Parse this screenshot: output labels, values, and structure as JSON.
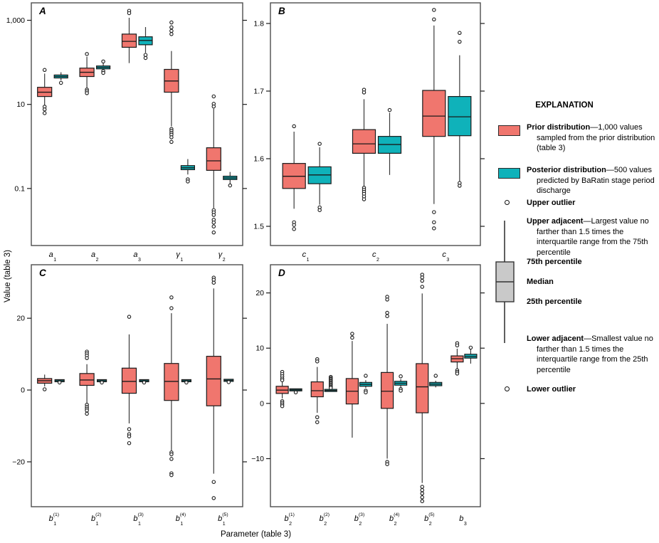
{
  "figure": {
    "y_axis_title": "Value (table 3)",
    "x_axis_title": "Parameter (table 3)"
  },
  "colors": {
    "prior": "#f0766e",
    "posterior": "#0fb2ba",
    "box_stroke": "#1a1a1a",
    "whisker": "#3a3a3a",
    "panel_border": "#4d4d4d",
    "legend_box_fill": "#c9c9c9"
  },
  "legend": {
    "title": "EXPLANATION",
    "prior": {
      "term": "Prior distribution",
      "desc": "—1,000 values sampled from the prior distribution (table 3)"
    },
    "posterior": {
      "term": "Posterior distribution",
      "desc": "—500 values predicted by BaRatin stage period discharge"
    },
    "upper_outlier": "Upper outlier",
    "upper_adjacent": {
      "term": "Upper adjacent",
      "desc": "—Largest value no farther than 1.5 times the interquartile range from the 75th percentile"
    },
    "p75": "75th percentile",
    "median": "Median",
    "p25": "25th percentile",
    "lower_adjacent": {
      "term": "Lower adjacent",
      "desc": "—Smallest value no farther than 1.5 times the interquartile range from the 25th percentile"
    },
    "lower_outlier": "Lower outlier"
  },
  "chart_data": [
    {
      "panel": "A",
      "type": "boxplot",
      "yscale": "log",
      "y_range": [
        0.0044,
        2600
      ],
      "yticks": [
        {
          "label": "1,000",
          "value": 1000
        },
        {
          "label": "10",
          "value": 10
        },
        {
          "label": "0.1",
          "value": 0.1
        }
      ],
      "categories": [
        {
          "main": "a",
          "sup": "",
          "sub": "1"
        },
        {
          "main": "a",
          "sup": "",
          "sub": "2"
        },
        {
          "main": "a",
          "sup": "",
          "sub": "3"
        },
        {
          "main": "γ",
          "sup": "",
          "sub": "1"
        },
        {
          "main": "γ",
          "sup": "",
          "sub": "2"
        }
      ],
      "groups": [
        {
          "prior": {
            "lo": 9.6,
            "q1": 15.4,
            "med": 19.5,
            "q3": 25.5,
            "hi": 54,
            "out_hi": [
              66
            ],
            "out_lo": [
              8.8,
              7.6,
              6.2
            ]
          },
          "posterior": {
            "lo": 37,
            "q1": 42.5,
            "med": 46,
            "q3": 50,
            "hi": 58,
            "out_hi": [],
            "out_lo": [
              32.5
            ]
          }
        },
        {
          "prior": {
            "lo": 24.5,
            "q1": 46,
            "med": 58,
            "q3": 73,
            "hi": 136,
            "out_hi": [
              158
            ],
            "out_lo": [
              22.5,
              20.5,
              18.5
            ]
          },
          "posterior": {
            "lo": 65,
            "q1": 70,
            "med": 76,
            "q3": 82,
            "hi": 100,
            "out_hi": [
              105
            ],
            "out_lo": [
              62,
              56
            ]
          }
        },
        {
          "prior": {
            "lo": 96,
            "q1": 228,
            "med": 315,
            "q3": 470,
            "hi": 1150,
            "out_hi": [
              1680,
              1480
            ],
            "out_lo": []
          },
          "posterior": {
            "lo": 168,
            "q1": 262,
            "med": 332,
            "q3": 405,
            "hi": 690,
            "out_hi": [],
            "out_lo": [
              150,
              127
            ]
          }
        },
        {
          "prior": {
            "lo": 3.0,
            "q1": 19.5,
            "med": 36,
            "q3": 68,
            "hi": 186,
            "out_hi": [
              890,
              680,
              560,
              470
            ],
            "out_lo": [
              2.6,
              2.35,
              2.1,
              1.9,
              1.65,
              1.28
            ]
          },
          "posterior": {
            "lo": 0.215,
            "q1": 0.28,
            "med": 0.31,
            "q3": 0.35,
            "hi": 0.5,
            "out_hi": [],
            "out_lo": [
              0.165,
              0.147
            ]
          }
        },
        {
          "prior": {
            "lo": 0.034,
            "q1": 0.27,
            "med": 0.455,
            "q3": 0.93,
            "hi": 7.9,
            "out_hi": [
              15.5,
              10.3,
              8.9
            ],
            "out_lo": [
              0.0305,
              0.027,
              0.0235,
              0.018,
              0.0155,
              0.0125,
              0.009
            ]
          },
          "posterior": {
            "lo": 0.126,
            "q1": 0.163,
            "med": 0.178,
            "q3": 0.196,
            "hi": 0.247,
            "out_hi": [],
            "out_lo": [
              0.118
            ]
          }
        }
      ]
    },
    {
      "panel": "B",
      "type": "boxplot",
      "yscale": "linear",
      "y_range": [
        1.4716,
        1.8305
      ],
      "yticks": [
        {
          "label": "1.8",
          "value": 1.8
        },
        {
          "label": "1.7",
          "value": 1.7
        },
        {
          "label": "1.6",
          "value": 1.6
        },
        {
          "label": "1.5",
          "value": 1.5
        }
      ],
      "categories": [
        {
          "main": "c",
          "sup": "",
          "sub": "1"
        },
        {
          "main": "c",
          "sup": "",
          "sub": "2"
        },
        {
          "main": "c",
          "sup": "",
          "sub": "3"
        }
      ],
      "groups": [
        {
          "prior": {
            "lo": 1.526,
            "q1": 1.556,
            "med": 1.574,
            "q3": 1.593,
            "hi": 1.64,
            "out_hi": [
              1.648
            ],
            "out_lo": [
              1.506,
              1.502,
              1.496
            ]
          },
          "posterior": {
            "lo": 1.532,
            "q1": 1.563,
            "med": 1.576,
            "q3": 1.588,
            "hi": 1.617,
            "out_hi": [
              1.622
            ],
            "out_lo": [
              1.528,
              1.524
            ]
          }
        },
        {
          "prior": {
            "lo": 1.558,
            "q1": 1.608,
            "med": 1.622,
            "q3": 1.643,
            "hi": 1.688,
            "out_hi": [
              1.702,
              1.698
            ],
            "out_lo": [
              1.557,
              1.554,
              1.551,
              1.548,
              1.544,
              1.54
            ]
          },
          "posterior": {
            "lo": 1.576,
            "q1": 1.608,
            "med": 1.621,
            "q3": 1.633,
            "hi": 1.668,
            "out_hi": [
              1.672
            ],
            "out_lo": []
          }
        },
        {
          "prior": {
            "lo": 1.533,
            "q1": 1.633,
            "med": 1.663,
            "q3": 1.701,
            "hi": 1.797,
            "out_hi": [
              1.82,
              1.806
            ],
            "out_lo": [
              1.521,
              1.506,
              1.497
            ]
          },
          "posterior": {
            "lo": 1.566,
            "q1": 1.634,
            "med": 1.662,
            "q3": 1.692,
            "hi": 1.753,
            "out_hi": [
              1.786,
              1.773
            ],
            "out_lo": [
              1.564,
              1.56
            ]
          }
        }
      ]
    },
    {
      "panel": "C",
      "type": "boxplot",
      "yscale": "linear",
      "y_range": [
        -32.5,
        34.9
      ],
      "yticks": [
        {
          "label": "20",
          "value": 20
        },
        {
          "label": "0",
          "value": 0
        },
        {
          "label": "−20",
          "value": -20
        }
      ],
      "categories": [
        {
          "main": "b",
          "sup": "(1)",
          "sub": "1"
        },
        {
          "main": "b",
          "sup": "(2)",
          "sub": "1"
        },
        {
          "main": "b",
          "sup": "(3)",
          "sub": "1"
        },
        {
          "main": "b",
          "sup": "(4)",
          "sub": "1"
        },
        {
          "main": "b",
          "sup": "(5)",
          "sub": "1"
        }
      ],
      "groups": [
        {
          "prior": {
            "lo": 1.0,
            "q1": 1.9,
            "med": 2.6,
            "q3": 3.2,
            "hi": 4.3,
            "out_hi": [],
            "out_lo": [
              0.2
            ]
          },
          "posterior": {
            "lo": 2.45,
            "q1": 2.45,
            "med": 2.6,
            "q3": 2.75,
            "hi": 2.75,
            "out_hi": [],
            "out_lo": [
              2.1
            ]
          }
        },
        {
          "prior": {
            "lo": -3.7,
            "q1": 1.3,
            "med": 2.8,
            "q3": 4.6,
            "hi": 7.2,
            "out_hi": [
              10.7,
              10.2,
              9.6,
              8.9
            ],
            "out_lo": [
              -4.1,
              -4.7,
              -5.2,
              -5.7,
              -6.6
            ]
          },
          "posterior": {
            "lo": 2.4,
            "q1": 2.4,
            "med": 2.6,
            "q3": 2.8,
            "hi": 2.8,
            "out_hi": [],
            "out_lo": [
              2.1
            ]
          }
        },
        {
          "prior": {
            "lo": -9.3,
            "q1": -0.9,
            "med": 2.4,
            "q3": 6.1,
            "hi": 15.5,
            "out_hi": [
              20.4
            ],
            "out_lo": [
              -10.9,
              -12.3,
              -12.9,
              -14.8
            ]
          },
          "posterior": {
            "lo": 2.45,
            "q1": 2.45,
            "med": 2.6,
            "q3": 2.75,
            "hi": 2.75,
            "out_hi": [],
            "out_lo": [
              2.1
            ]
          }
        },
        {
          "prior": {
            "lo": -16.9,
            "q1": -2.9,
            "med": 2.4,
            "q3": 7.4,
            "hi": 21.4,
            "out_hi": [
              25.8,
              22.8
            ],
            "out_lo": [
              -17.4,
              -17.9,
              -19.2,
              -23.2,
              -23.7
            ]
          },
          "posterior": {
            "lo": 2.45,
            "q1": 2.45,
            "med": 2.6,
            "q3": 2.75,
            "hi": 2.75,
            "out_hi": [],
            "out_lo": [
              2.1
            ]
          }
        },
        {
          "prior": {
            "lo": -23.3,
            "q1": -4.4,
            "med": 3.1,
            "q3": 9.4,
            "hi": 28.3,
            "out_hi": [
              31.3,
              30.7,
              29.9
            ],
            "out_lo": [
              -25.6,
              -30.1
            ]
          },
          "posterior": {
            "lo": 2.55,
            "q1": 2.55,
            "med": 2.7,
            "q3": 2.85,
            "hi": 2.85,
            "out_hi": [],
            "out_lo": [
              2.2
            ]
          }
        }
      ]
    },
    {
      "panel": "D",
      "type": "boxplot",
      "yscale": "linear",
      "y_range": [
        -18.7,
        25.1
      ],
      "yticks": [
        {
          "label": "20",
          "value": 20
        },
        {
          "label": "10",
          "value": 10
        },
        {
          "label": "0",
          "value": 0
        },
        {
          "label": "−10",
          "value": -10
        }
      ],
      "categories": [
        {
          "main": "b",
          "sup": "(1)",
          "sub": "2"
        },
        {
          "main": "b",
          "sup": "(2)",
          "sub": "2"
        },
        {
          "main": "b",
          "sup": "(3)",
          "sub": "2"
        },
        {
          "main": "b",
          "sup": "(4)",
          "sub": "2"
        },
        {
          "main": "b",
          "sup": "(5)",
          "sub": "2"
        },
        {
          "main": "b",
          "sup": "",
          "sub": "3"
        }
      ],
      "groups": [
        {
          "prior": {
            "lo": 0.9,
            "q1": 1.8,
            "med": 2.4,
            "q3": 3.1,
            "hi": 4.0,
            "out_hi": [
              5.7,
              5.3,
              4.9,
              4.5,
              4.2
            ],
            "out_lo": [
              0.4,
              0.1,
              -0.2,
              -0.5
            ]
          },
          "posterior": {
            "lo": 2.3,
            "q1": 2.3,
            "med": 2.45,
            "q3": 2.6,
            "hi": 2.6,
            "out_hi": [],
            "out_lo": [
              2.0
            ]
          }
        },
        {
          "prior": {
            "lo": -1.7,
            "q1": 1.2,
            "med": 2.3,
            "q3": 3.9,
            "hi": 6.6,
            "out_hi": [
              8.0,
              7.6
            ],
            "out_lo": [
              -2.5,
              -3.4
            ]
          },
          "posterior": {
            "lo": 2.2,
            "q1": 2.2,
            "med": 2.35,
            "q3": 2.5,
            "hi": 2.5,
            "out_hi": [
              4.8,
              4.6,
              4.4,
              4.2,
              4.0,
              3.8,
              3.6,
              3.4,
              3.2,
              3.0,
              2.8
            ],
            "out_lo": []
          }
        },
        {
          "prior": {
            "lo": -6.2,
            "q1": -0.1,
            "med": 2.2,
            "q3": 4.5,
            "hi": 11.3,
            "out_hi": [
              12.6,
              11.9
            ],
            "out_lo": []
          },
          "posterior": {
            "lo": 2.8,
            "q1": 3.1,
            "med": 3.45,
            "q3": 3.8,
            "hi": 4.2,
            "out_hi": [
              5.0
            ],
            "out_lo": [
              2.3,
              2.0
            ]
          }
        },
        {
          "prior": {
            "lo": -10.0,
            "q1": -0.9,
            "med": 2.2,
            "q3": 5.6,
            "hi": 14.4,
            "out_hi": [
              19.3,
              18.8,
              16.4,
              15.8
            ],
            "out_lo": [
              -10.6,
              -11.0
            ]
          },
          "posterior": {
            "lo": 2.9,
            "q1": 3.3,
            "med": 3.65,
            "q3": 4.0,
            "hi": 4.4,
            "out_hi": [
              4.9
            ],
            "out_lo": [
              2.6,
              2.3
            ]
          }
        },
        {
          "prior": {
            "lo": -14.4,
            "q1": -1.7,
            "med": 3.0,
            "q3": 7.2,
            "hi": 19.9,
            "out_hi": [
              23.3,
              22.8,
              22.2,
              21.1
            ],
            "out_lo": [
              -15.1,
              -15.7,
              -16.3,
              -17.0,
              -17.7
            ]
          },
          "posterior": {
            "lo": 2.9,
            "q1": 3.2,
            "med": 3.5,
            "q3": 3.8,
            "hi": 4.1,
            "out_hi": [
              5.0
            ],
            "out_lo": []
          }
        },
        {
          "prior": {
            "lo": 6.3,
            "q1": 7.5,
            "med": 8.1,
            "q3": 8.6,
            "hi": 9.9,
            "out_hi": [
              10.9,
              10.5
            ],
            "out_lo": [
              6.0,
              5.7,
              5.4
            ]
          },
          "posterior": {
            "lo": 7.2,
            "q1": 8.2,
            "med": 8.5,
            "q3": 8.9,
            "hi": 9.8,
            "out_hi": [
              10.1
            ],
            "out_lo": []
          }
        }
      ]
    }
  ]
}
